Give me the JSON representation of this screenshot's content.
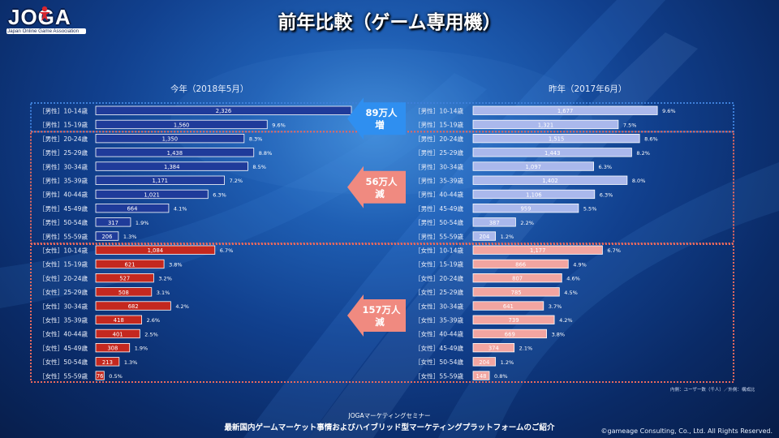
{
  "logo": {
    "main": "JOGA",
    "sub": "Japan Online Game Association"
  },
  "title": "前年比較（ゲーム専用機）",
  "footnote": "内側：ユーザー数（千人）／外側：構成比",
  "footer": {
    "small": "JOGAマーケティングセミナー",
    "main": "最新国内ゲームマーケット事情およびハイブリッド型マーケティングプラットフォームのご紹介",
    "copyright": "©gameage Consulting, Co., Ltd. All Rights Reserved."
  },
  "callouts": [
    {
      "line1": "89万人",
      "line2": "増"
    },
    {
      "line1": "56万人",
      "line2": "減"
    },
    {
      "line1": "157万人",
      "line2": "減"
    }
  ],
  "colors": {
    "male_current": "#1f3b9a",
    "male_prev": "#aab8ec",
    "female_current": "#c4281f",
    "female_prev": "#f2a5a1",
    "bar_text_current": "#ffffff",
    "bar_text_prev": "#ffffff",
    "box_blue": "#3d7fd9",
    "box_red": "#e8695e",
    "arrow_blue": "#2f8ff0",
    "arrow_red": "#f08a80"
  },
  "chart_data": {
    "type": "bar",
    "orientation": "horizontal",
    "unit": "千人",
    "categories": [
      "［男性］10-14歳",
      "［男性］15-19歳",
      "［男性］20-24歳",
      "［男性］25-29歳",
      "［男性］30-34歳",
      "［男性］35-39歳",
      "［男性］40-44歳",
      "［男性］45-49歳",
      "［男性］50-54歳",
      "［男性］55-59歳",
      "［女性］10-14歳",
      "［女性］15-19歳",
      "［女性］20-24歳",
      "［女性］25-29歳",
      "［女性］30-34歳",
      "［女性］35-39歳",
      "［女性］40-44歳",
      "［女性］45-49歳",
      "［女性］50-54歳",
      "［女性］55-59歳"
    ],
    "xlim": [
      0,
      2400
    ],
    "series": [
      {
        "name": "今年（2018年5月）",
        "values": [
          2326,
          1560,
          1350,
          1438,
          1384,
          1171,
          1021,
          664,
          317,
          206,
          1084,
          621,
          527,
          508,
          682,
          418,
          401,
          308,
          213,
          76
        ],
        "value_labels": [
          "2,326",
          "1,560",
          "1,350",
          "1,438",
          "1,384",
          "1,171",
          "1,021",
          "664",
          "317",
          "206",
          "1,084",
          "621",
          "527",
          "508",
          "682",
          "418",
          "401",
          "308",
          "213",
          "76"
        ],
        "shares": [
          "",
          "9.6%",
          "8.3%",
          "8.8%",
          "8.5%",
          "7.2%",
          "6.3%",
          "4.1%",
          "1.9%",
          "1.3%",
          "6.7%",
          "3.8%",
          "3.2%",
          "3.1%",
          "4.2%",
          "2.6%",
          "2.5%",
          "1.9%",
          "1.3%",
          "0.5%"
        ]
      },
      {
        "name": "昨年（2017年6月）",
        "values": [
          1677,
          1321,
          1515,
          1443,
          1097,
          1402,
          1106,
          959,
          387,
          204,
          1177,
          866,
          807,
          785,
          641,
          739,
          669,
          374,
          204,
          148
        ],
        "value_labels": [
          "1,677",
          "1,321",
          "1,515",
          "1,443",
          "1,097",
          "1,402",
          "1,106",
          "959",
          "387",
          "204",
          "1,177",
          "866",
          "807",
          "785",
          "641",
          "739",
          "669",
          "374",
          "204",
          "148"
        ],
        "shares": [
          "9.6%",
          "7.5%",
          "8.6%",
          "8.2%",
          "6.3%",
          "8.0%",
          "6.3%",
          "5.5%",
          "2.2%",
          "1.2%",
          "6.7%",
          "4.9%",
          "4.6%",
          "4.5%",
          "3.7%",
          "4.2%",
          "3.8%",
          "2.1%",
          "1.2%",
          "0.8%"
        ]
      }
    ]
  }
}
